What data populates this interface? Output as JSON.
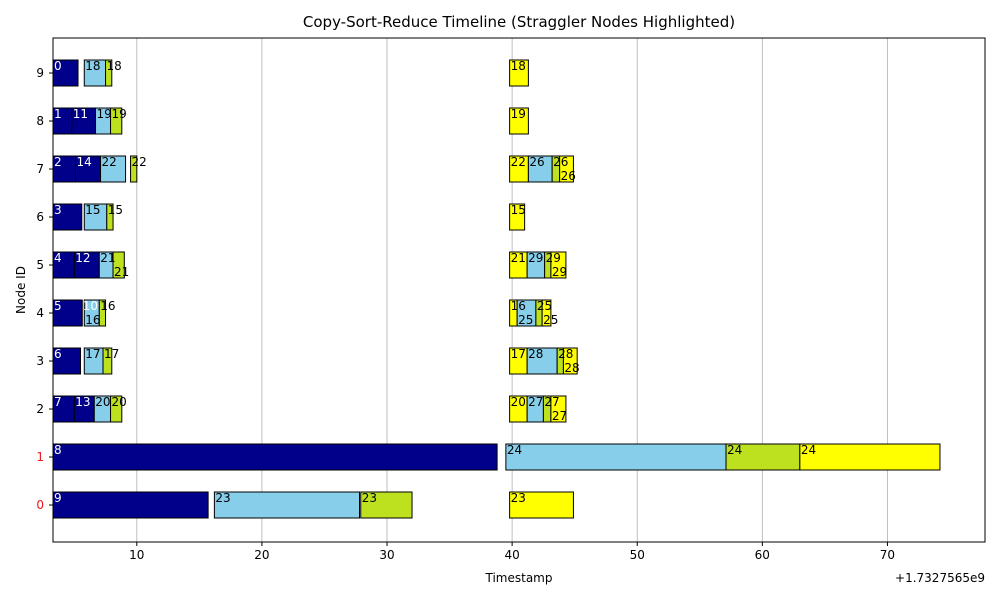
{
  "chart_data": {
    "type": "bar",
    "orientation": "horizontal",
    "title": "Copy-Sort-Reduce Timeline (Straggler Nodes Highlighted)",
    "xlabel": "Timestamp",
    "ylabel": "Node ID",
    "x_offset_label": "+1.7327565e9",
    "xlim": [
      3.3,
      77.8
    ],
    "x_ticks": [
      10,
      20,
      30,
      40,
      50,
      60,
      70
    ],
    "y_ticks": [
      0,
      1,
      2,
      3,
      4,
      5,
      6,
      7,
      8,
      9
    ],
    "straggler_nodes": [
      0,
      1
    ],
    "straggler_tick_color": "#e8191c",
    "grid": "x",
    "colors": {
      "copy": "#00008b",
      "sort": "#87ceeb",
      "reduce": "#bde11e",
      "final": "#ffff00",
      "edge": "#000000"
    },
    "segments": [
      {
        "node": 9,
        "phase": "copy",
        "start": 3.3,
        "end": 5.3,
        "label": "0"
      },
      {
        "node": 9,
        "phase": "sort",
        "start": 5.8,
        "end": 7.5,
        "label": "18"
      },
      {
        "node": 9,
        "phase": "reduce",
        "start": 7.5,
        "end": 8.0,
        "label": "18"
      },
      {
        "node": 9,
        "phase": "final",
        "start": 39.8,
        "end": 41.3,
        "label": "18"
      },
      {
        "node": 8,
        "phase": "copy",
        "start": 3.3,
        "end": 4.8,
        "label": "1"
      },
      {
        "node": 8,
        "phase": "copy",
        "start": 4.8,
        "end": 6.7,
        "label": "11"
      },
      {
        "node": 8,
        "phase": "sort",
        "start": 6.7,
        "end": 7.9,
        "label": "19"
      },
      {
        "node": 8,
        "phase": "reduce",
        "start": 7.9,
        "end": 8.8,
        "label": "19"
      },
      {
        "node": 8,
        "phase": "final",
        "start": 39.8,
        "end": 41.3,
        "label": "19"
      },
      {
        "node": 7,
        "phase": "copy",
        "start": 3.3,
        "end": 5.1,
        "label": "2"
      },
      {
        "node": 7,
        "phase": "copy",
        "start": 5.1,
        "end": 7.1,
        "label": "14"
      },
      {
        "node": 7,
        "phase": "sort",
        "start": 7.1,
        "end": 9.1,
        "label": "22"
      },
      {
        "node": 7,
        "phase": "reduce",
        "start": 9.5,
        "end": 10.0,
        "label": "22"
      },
      {
        "node": 7,
        "phase": "final",
        "start": 39.8,
        "end": 41.3,
        "label": "22"
      },
      {
        "node": 7,
        "phase": "sort",
        "start": 41.3,
        "end": 43.2,
        "label": "26"
      },
      {
        "node": 7,
        "phase": "reduce",
        "start": 43.2,
        "end": 43.8,
        "label": "26"
      },
      {
        "node": 7,
        "phase": "final",
        "start": 43.8,
        "end": 44.9,
        "label": "26"
      },
      {
        "node": 6,
        "phase": "copy",
        "start": 3.3,
        "end": 5.6,
        "label": "3"
      },
      {
        "node": 6,
        "phase": "sort",
        "start": 5.8,
        "end": 7.6,
        "label": "15"
      },
      {
        "node": 6,
        "phase": "reduce",
        "start": 7.6,
        "end": 8.1,
        "label": "15"
      },
      {
        "node": 6,
        "phase": "final",
        "start": 39.8,
        "end": 41.0,
        "label": "15"
      },
      {
        "node": 5,
        "phase": "copy",
        "start": 3.3,
        "end": 5.0,
        "label": "4"
      },
      {
        "node": 5,
        "phase": "copy",
        "start": 5.0,
        "end": 7.0,
        "label": "12"
      },
      {
        "node": 5,
        "phase": "sort",
        "start": 7.0,
        "end": 8.1,
        "label": "21"
      },
      {
        "node": 5,
        "phase": "reduce",
        "start": 8.1,
        "end": 9.0,
        "label": "21"
      },
      {
        "node": 5,
        "phase": "final",
        "start": 39.8,
        "end": 41.2,
        "label": "21"
      },
      {
        "node": 5,
        "phase": "sort",
        "start": 41.2,
        "end": 42.6,
        "label": "29"
      },
      {
        "node": 5,
        "phase": "reduce",
        "start": 42.6,
        "end": 43.1,
        "label": "29"
      },
      {
        "node": 5,
        "phase": "final",
        "start": 43.1,
        "end": 44.3,
        "label": "29"
      },
      {
        "node": 4,
        "phase": "copy",
        "start": 3.3,
        "end": 5.6,
        "label": "5"
      },
      {
        "node": 4,
        "phase": "copy",
        "start": 5.6,
        "end": 5.6,
        "label": "10"
      },
      {
        "node": 4,
        "phase": "sort",
        "start": 5.8,
        "end": 7.0,
        "label": "16"
      },
      {
        "node": 4,
        "phase": "reduce",
        "start": 7.0,
        "end": 7.5,
        "label": "16"
      },
      {
        "node": 4,
        "phase": "final",
        "start": 39.8,
        "end": 40.4,
        "label": "16"
      },
      {
        "node": 4,
        "phase": "sort",
        "start": 40.4,
        "end": 41.9,
        "label": "25"
      },
      {
        "node": 4,
        "phase": "reduce",
        "start": 41.9,
        "end": 42.4,
        "label": "25"
      },
      {
        "node": 4,
        "phase": "final",
        "start": 42.4,
        "end": 43.1,
        "label": "25"
      },
      {
        "node": 3,
        "phase": "copy",
        "start": 3.3,
        "end": 5.5,
        "label": "6"
      },
      {
        "node": 3,
        "phase": "sort",
        "start": 5.8,
        "end": 7.3,
        "label": "17"
      },
      {
        "node": 3,
        "phase": "reduce",
        "start": 7.3,
        "end": 8.0,
        "label": "17"
      },
      {
        "node": 3,
        "phase": "final",
        "start": 39.8,
        "end": 41.2,
        "label": "17"
      },
      {
        "node": 3,
        "phase": "sort",
        "start": 41.2,
        "end": 43.6,
        "label": "28"
      },
      {
        "node": 3,
        "phase": "reduce",
        "start": 43.6,
        "end": 44.1,
        "label": "28"
      },
      {
        "node": 3,
        "phase": "final",
        "start": 44.1,
        "end": 45.2,
        "label": "28"
      },
      {
        "node": 2,
        "phase": "copy",
        "start": 3.3,
        "end": 5.0,
        "label": "7"
      },
      {
        "node": 2,
        "phase": "copy",
        "start": 5.0,
        "end": 6.6,
        "label": "13"
      },
      {
        "node": 2,
        "phase": "sort",
        "start": 6.6,
        "end": 7.9,
        "label": "20"
      },
      {
        "node": 2,
        "phase": "reduce",
        "start": 7.9,
        "end": 8.8,
        "label": "20"
      },
      {
        "node": 2,
        "phase": "final",
        "start": 39.8,
        "end": 41.2,
        "label": "20"
      },
      {
        "node": 2,
        "phase": "sort",
        "start": 41.2,
        "end": 42.5,
        "label": "27"
      },
      {
        "node": 2,
        "phase": "reduce",
        "start": 42.5,
        "end": 43.1,
        "label": "27"
      },
      {
        "node": 2,
        "phase": "final",
        "start": 43.1,
        "end": 44.3,
        "label": "27"
      },
      {
        "node": 1,
        "phase": "copy",
        "start": 3.3,
        "end": 38.8,
        "label": "8"
      },
      {
        "node": 1,
        "phase": "sort",
        "start": 39.5,
        "end": 57.1,
        "label": "24"
      },
      {
        "node": 1,
        "phase": "reduce",
        "start": 57.1,
        "end": 63.0,
        "label": "24"
      },
      {
        "node": 1,
        "phase": "final",
        "start": 63.0,
        "end": 74.2,
        "label": "24"
      },
      {
        "node": 0,
        "phase": "copy",
        "start": 3.3,
        "end": 15.7,
        "label": "9"
      },
      {
        "node": 0,
        "phase": "sort",
        "start": 16.2,
        "end": 27.8,
        "label": "23"
      },
      {
        "node": 0,
        "phase": "reduce",
        "start": 27.9,
        "end": 32.0,
        "label": "23"
      },
      {
        "node": 0,
        "phase": "final",
        "start": 39.8,
        "end": 44.9,
        "label": "23"
      }
    ]
  }
}
